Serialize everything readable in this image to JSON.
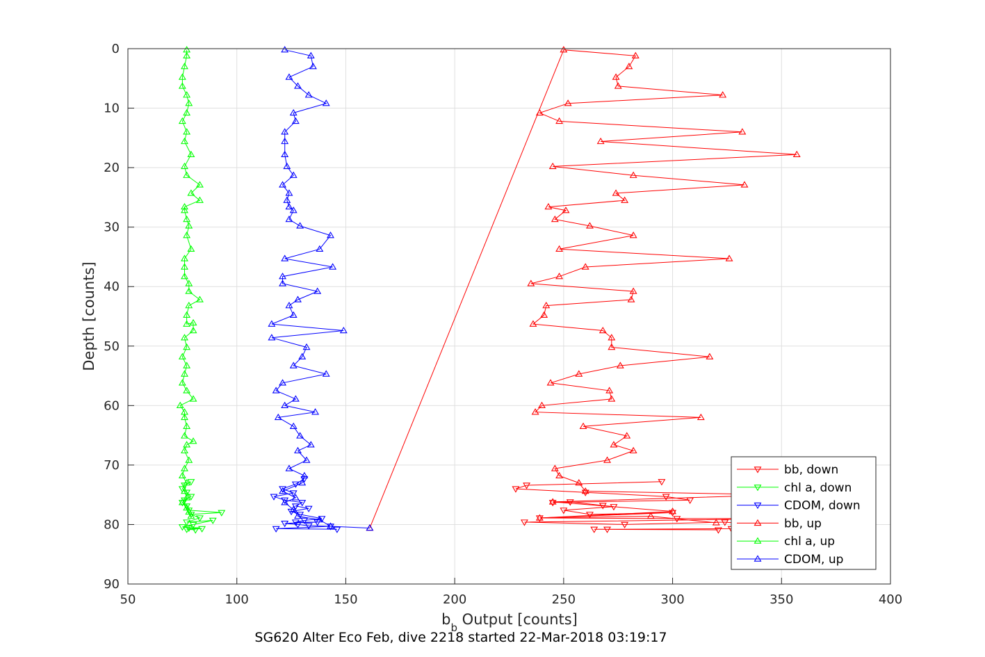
{
  "chart_data": {
    "type": "line",
    "title": "",
    "xlabel_main": "b",
    "xlabel_sub": "b",
    "xlabel_rest": " Output [counts]",
    "ylabel": "Depth [counts]",
    "caption": "SG620 Alter Eco Feb, dive 2218 started 22-Mar-2018 03:19:17",
    "xlim": [
      50,
      400
    ],
    "ylim": [
      0,
      90
    ],
    "y_reversed": true,
    "grid": true,
    "xticks": [
      50,
      100,
      150,
      200,
      250,
      300,
      350,
      400
    ],
    "yticks": [
      0,
      10,
      20,
      30,
      40,
      50,
      60,
      70,
      80,
      90
    ],
    "legend_position": "bottom-right",
    "series": [
      {
        "name": "bb, down",
        "color": "#ff0000",
        "marker": "triangle-down",
        "points": [
          [
            295,
            72.8
          ],
          [
            233,
            73.4
          ],
          [
            228,
            74.0
          ],
          [
            260,
            74.6
          ],
          [
            297,
            75.3
          ],
          [
            308,
            75.9
          ],
          [
            245,
            76.3
          ],
          [
            253,
            76.2
          ],
          [
            268,
            76.8
          ],
          [
            273,
            77.0
          ],
          [
            250,
            77.6
          ],
          [
            262,
            78.3
          ],
          [
            300,
            78.0
          ],
          [
            239,
            78.9
          ],
          [
            302,
            79.0
          ],
          [
            355,
            79.0
          ],
          [
            232,
            79.6
          ],
          [
            278,
            80.0
          ],
          [
            324,
            79.6
          ],
          [
            350,
            80.4
          ],
          [
            327,
            80.7
          ],
          [
            270,
            80.8
          ],
          [
            264,
            80.8
          ],
          [
            321,
            80.9
          ]
        ]
      },
      {
        "name": "chl a, down",
        "color": "#00ff00",
        "marker": "triangle-down",
        "points": [
          [
            79,
            72.8
          ],
          [
            76,
            73.4
          ],
          [
            75,
            74.0
          ],
          [
            77,
            74.6
          ],
          [
            79,
            75.3
          ],
          [
            76,
            75.9
          ],
          [
            75,
            76.3
          ],
          [
            77,
            76.9
          ],
          [
            78,
            77.6
          ],
          [
            93,
            78.0
          ],
          [
            79,
            78.3
          ],
          [
            83,
            78.9
          ],
          [
            77,
            79.6
          ],
          [
            89,
            79.3
          ],
          [
            80,
            80.0
          ],
          [
            75,
            80.4
          ],
          [
            78,
            80.6
          ],
          [
            84,
            80.7
          ],
          [
            77,
            80.8
          ],
          [
            81,
            80.9
          ]
        ]
      },
      {
        "name": "CDOM, down",
        "color": "#0000ff",
        "marker": "triangle-down",
        "points": [
          [
            131,
            72.3
          ],
          [
            127,
            73.2
          ],
          [
            121,
            74.0
          ],
          [
            126,
            74.7
          ],
          [
            117,
            75.3
          ],
          [
            122,
            75.9
          ],
          [
            130,
            76.3
          ],
          [
            127,
            76.9
          ],
          [
            133,
            77.3
          ],
          [
            125,
            77.8
          ],
          [
            129,
            78.3
          ],
          [
            139,
            79.0
          ],
          [
            131,
            79.3
          ],
          [
            127,
            79.6
          ],
          [
            137,
            79.6
          ],
          [
            122,
            79.8
          ],
          [
            128,
            80.0
          ],
          [
            133,
            80.2
          ],
          [
            143,
            80.3
          ],
          [
            118,
            80.7
          ],
          [
            146,
            80.8
          ]
        ]
      },
      {
        "name": "bb, up",
        "color": "#ff0000",
        "marker": "triangle-up",
        "points": [
          [
            161,
            80.6
          ],
          [
            250,
            0.2
          ],
          [
            283,
            1.2
          ],
          [
            280,
            3.0
          ],
          [
            274,
            4.8
          ],
          [
            275,
            6.3
          ],
          [
            323,
            7.8
          ],
          [
            252,
            9.2
          ],
          [
            239,
            10.8
          ],
          [
            248,
            12.2
          ],
          [
            332,
            14.0
          ],
          [
            267,
            15.6
          ],
          [
            357,
            17.8
          ],
          [
            245,
            19.8
          ],
          [
            282,
            21.3
          ],
          [
            333,
            22.9
          ],
          [
            274,
            24.3
          ],
          [
            278,
            25.5
          ],
          [
            243,
            26.6
          ],
          [
            251,
            27.2
          ],
          [
            246,
            28.7
          ],
          [
            262,
            29.8
          ],
          [
            282,
            31.4
          ],
          [
            248,
            33.7
          ],
          [
            326,
            35.3
          ],
          [
            260,
            36.7
          ],
          [
            248,
            38.3
          ],
          [
            235,
            39.5
          ],
          [
            282,
            40.8
          ],
          [
            281,
            42.2
          ],
          [
            242,
            43.2
          ],
          [
            241,
            44.8
          ],
          [
            236,
            46.3
          ],
          [
            268,
            47.4
          ],
          [
            272,
            48.6
          ],
          [
            272,
            50.2
          ],
          [
            317,
            51.8
          ],
          [
            276,
            53.3
          ],
          [
            257,
            54.7
          ],
          [
            244,
            56.2
          ],
          [
            271,
            57.5
          ],
          [
            272,
            58.9
          ],
          [
            240,
            60.0
          ],
          [
            237,
            61.1
          ],
          [
            313,
            62.0
          ],
          [
            259,
            63.5
          ],
          [
            279,
            65.1
          ],
          [
            273,
            66.6
          ],
          [
            282,
            67.6
          ],
          [
            270,
            69.2
          ],
          [
            246,
            70.6
          ],
          [
            248,
            71.8
          ],
          [
            257,
            73.0
          ],
          [
            260,
            74.4
          ],
          [
            350,
            75.0
          ],
          [
            245,
            76.2
          ],
          [
            300,
            77.8
          ],
          [
            239,
            78.9
          ],
          [
            290,
            78.6
          ],
          [
            320,
            79.7
          ]
        ]
      },
      {
        "name": "chl a, up",
        "color": "#00ff00",
        "marker": "triangle-up",
        "points": [
          [
            77,
            0.2
          ],
          [
            77,
            1.2
          ],
          [
            76,
            3.0
          ],
          [
            75,
            4.8
          ],
          [
            75,
            6.3
          ],
          [
            77,
            7.8
          ],
          [
            78,
            9.2
          ],
          [
            77,
            10.8
          ],
          [
            75,
            12.2
          ],
          [
            77,
            14.0
          ],
          [
            76,
            15.6
          ],
          [
            79,
            17.8
          ],
          [
            76,
            19.8
          ],
          [
            77,
            21.3
          ],
          [
            83,
            22.9
          ],
          [
            79,
            24.3
          ],
          [
            83,
            25.5
          ],
          [
            76,
            26.6
          ],
          [
            76,
            27.2
          ],
          [
            77,
            28.7
          ],
          [
            78,
            29.8
          ],
          [
            77,
            31.4
          ],
          [
            79,
            33.7
          ],
          [
            76,
            35.3
          ],
          [
            76,
            36.7
          ],
          [
            76,
            38.3
          ],
          [
            78,
            39.5
          ],
          [
            78,
            40.8
          ],
          [
            83,
            42.2
          ],
          [
            78,
            43.2
          ],
          [
            77,
            44.8
          ],
          [
            77,
            46.3
          ],
          [
            80,
            46.1
          ],
          [
            80,
            47.4
          ],
          [
            76,
            48.6
          ],
          [
            77,
            50.2
          ],
          [
            75,
            51.8
          ],
          [
            77,
            53.3
          ],
          [
            76,
            54.7
          ],
          [
            75,
            56.2
          ],
          [
            77,
            57.5
          ],
          [
            80,
            58.9
          ],
          [
            74,
            60.0
          ],
          [
            76,
            61.1
          ],
          [
            76,
            62.0
          ],
          [
            77,
            63.5
          ],
          [
            76,
            65.1
          ],
          [
            80,
            66.0
          ],
          [
            77,
            66.6
          ],
          [
            76,
            67.6
          ],
          [
            78,
            69.2
          ],
          [
            76,
            70.6
          ],
          [
            75,
            71.8
          ],
          [
            77,
            73.0
          ],
          [
            76,
            74.4
          ],
          [
            77,
            75.5
          ],
          [
            75,
            76.3
          ],
          [
            77,
            77.2
          ],
          [
            78,
            77.9
          ],
          [
            79,
            78.6
          ]
        ]
      },
      {
        "name": "CDOM, up",
        "color": "#0000ff",
        "marker": "triangle-up",
        "points": [
          [
            122,
            0.2
          ],
          [
            134,
            1.2
          ],
          [
            135,
            3.0
          ],
          [
            124,
            4.8
          ],
          [
            128,
            6.3
          ],
          [
            133,
            7.8
          ],
          [
            141,
            9.2
          ],
          [
            126,
            10.8
          ],
          [
            127,
            12.2
          ],
          [
            122,
            14.0
          ],
          [
            122,
            15.6
          ],
          [
            122,
            17.8
          ],
          [
            123,
            19.8
          ],
          [
            126,
            21.3
          ],
          [
            121,
            22.9
          ],
          [
            124,
            24.3
          ],
          [
            123,
            25.5
          ],
          [
            124,
            26.6
          ],
          [
            126,
            27.2
          ],
          [
            124,
            28.7
          ],
          [
            129,
            29.8
          ],
          [
            143,
            31.4
          ],
          [
            138,
            33.7
          ],
          [
            122,
            35.3
          ],
          [
            144,
            36.7
          ],
          [
            121,
            38.3
          ],
          [
            121,
            39.5
          ],
          [
            137,
            40.8
          ],
          [
            128,
            42.2
          ],
          [
            124,
            43.2
          ],
          [
            126,
            44.8
          ],
          [
            116,
            46.3
          ],
          [
            149,
            47.4
          ],
          [
            116,
            48.6
          ],
          [
            132,
            50.2
          ],
          [
            130,
            51.8
          ],
          [
            126,
            53.3
          ],
          [
            141,
            54.7
          ],
          [
            121,
            56.2
          ],
          [
            118,
            57.5
          ],
          [
            127,
            58.9
          ],
          [
            122,
            60.0
          ],
          [
            136,
            61.1
          ],
          [
            119,
            62.0
          ],
          [
            126,
            63.5
          ],
          [
            129,
            65.1
          ],
          [
            134,
            66.6
          ],
          [
            128,
            67.6
          ],
          [
            132,
            69.2
          ],
          [
            124,
            70.6
          ],
          [
            131,
            71.8
          ],
          [
            130,
            73.0
          ],
          [
            121,
            74.4
          ],
          [
            127,
            75.5
          ],
          [
            122,
            76.3
          ],
          [
            126,
            77.5
          ],
          [
            128,
            78.6
          ],
          [
            138,
            79.2
          ],
          [
            143,
            80.3
          ],
          [
            161,
            80.6
          ]
        ]
      }
    ]
  }
}
